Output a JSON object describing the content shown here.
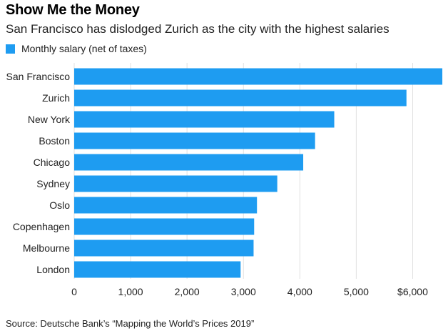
{
  "chart_data": {
    "type": "bar",
    "orientation": "horizontal",
    "title": "Show Me the Money",
    "subtitle": "San Francisco has dislodged Zurich as the city with the highest salaries",
    "categories": [
      "San Francisco",
      "Zurich",
      "New York",
      "Boston",
      "Chicago",
      "Sydney",
      "Oslo",
      "Copenhagen",
      "Melbourne",
      "London"
    ],
    "series": [
      {
        "name": "Monthly salary (net of taxes)",
        "values": [
          6526,
          5890,
          4610,
          4270,
          4060,
          3600,
          3240,
          3190,
          3180,
          2950
        ]
      }
    ],
    "xlim": [
      0,
      6500
    ],
    "xticks": [
      0,
      1000,
      2000,
      3000,
      4000,
      5000,
      6000
    ],
    "xtick_labels": [
      "0",
      "1,000",
      "2,000",
      "3,000",
      "4,000",
      "5,000",
      "$6,000"
    ],
    "gridlines": "vertical",
    "legend_position": "top-left",
    "xlabel": "",
    "ylabel": ""
  },
  "colors": {
    "bar": "#1e9cf1",
    "grid": "#e1e1e1",
    "text": "#222222"
  },
  "source": "Source: Deutsche Bank’s “Mapping the World’s Prices 2019”"
}
